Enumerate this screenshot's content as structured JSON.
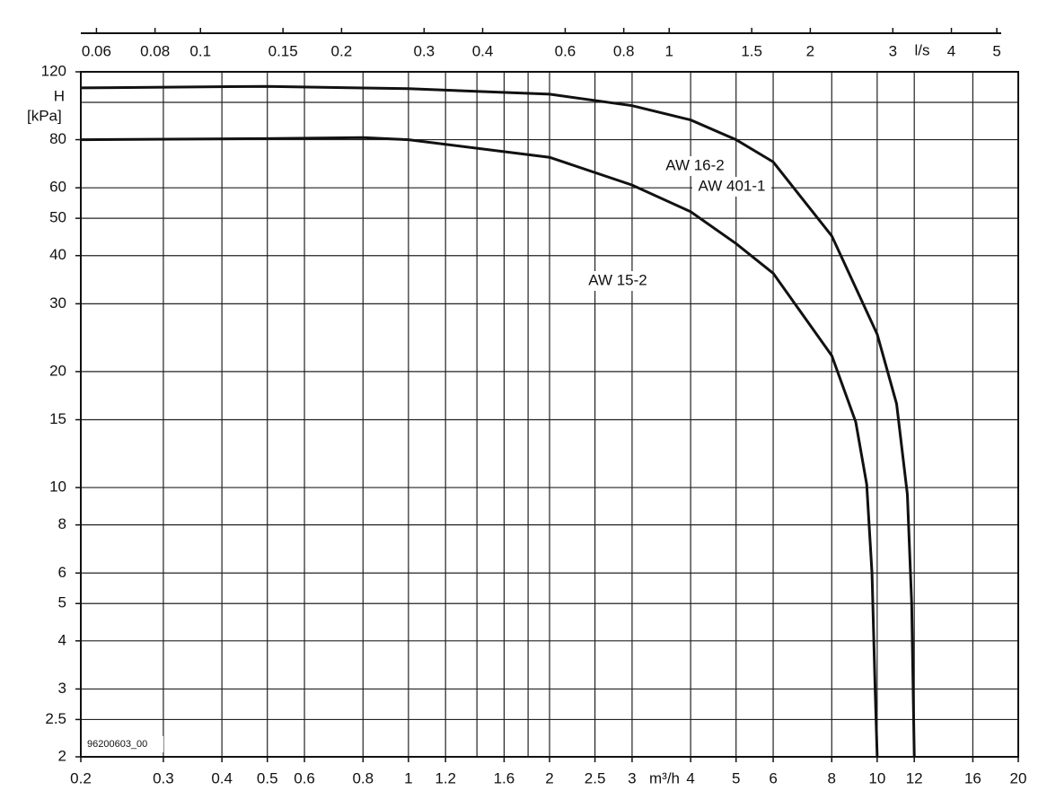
{
  "chart_data": {
    "type": "line",
    "xlabel": "m³/h",
    "x2label": "l/s",
    "ylabel": "H",
    "yunit": "[kPa]",
    "code": "96200603_00",
    "xscale": "log",
    "yscale": "log",
    "grid": true,
    "xlim": [
      0.2,
      20
    ],
    "xticks": [
      0.2,
      0.3,
      0.4,
      0.5,
      0.6,
      0.8,
      1,
      1.2,
      1.6,
      2,
      2.5,
      3,
      4,
      5,
      6,
      8,
      10,
      12,
      16,
      20
    ],
    "xminor": [
      1.4,
      1.8
    ],
    "x2lim": [
      0.05556,
      5.5556
    ],
    "x2ticks": [
      0.06,
      0.08,
      0.1,
      0.15,
      0.2,
      0.3,
      0.4,
      0.6,
      0.8,
      1,
      1.5,
      2,
      3,
      4,
      5
    ],
    "ylim": [
      2,
      120
    ],
    "yticks": [
      2,
      2.5,
      3,
      4,
      5,
      6,
      8,
      10,
      15,
      20,
      30,
      40,
      50,
      60,
      80,
      120
    ],
    "yminor": [
      100
    ],
    "series": [
      {
        "labels": [
          "AW 16-2",
          "AW 401-1"
        ],
        "color": "#111111",
        "x": [
          0.2,
          0.5,
          1,
          2,
          3,
          4,
          5,
          6,
          8,
          10,
          11,
          11.6,
          11.85,
          12
        ],
        "values": [
          109,
          110,
          108.5,
          105,
          98,
          90,
          80,
          70,
          45,
          25,
          16.5,
          9.6,
          5,
          2
        ]
      },
      {
        "labels": [
          "AW 15-2"
        ],
        "color": "#111111",
        "x": [
          0.2,
          0.5,
          0.8,
          1,
          2,
          3,
          4,
          5,
          6,
          8,
          9,
          9.5,
          9.75,
          9.9,
          10
        ],
        "values": [
          80,
          80.5,
          81,
          80,
          72,
          61,
          52,
          43,
          36,
          22,
          14.8,
          10.2,
          6,
          3,
          2
        ]
      }
    ]
  }
}
